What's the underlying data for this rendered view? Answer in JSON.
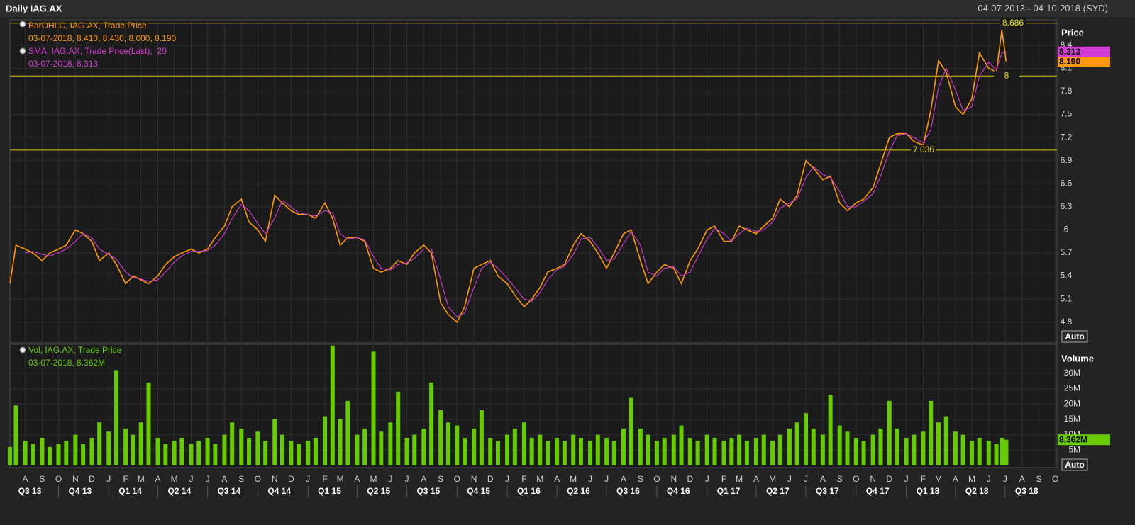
{
  "chart_data": [
    {
      "type": "line",
      "title": "Daily IAG.AX",
      "timezone": "(SYD)",
      "y_axis_title": "Price",
      "scale_mode": "Auto",
      "xlim": [
        "04-07-2013",
        "04-10-2018"
      ],
      "xticks": [
        {
          "value": "01-08-2013",
          "label": "A"
        },
        {
          "value": "01-09-2013",
          "label": "S"
        },
        {
          "value": "01-10-2013",
          "label": "O"
        },
        {
          "value": "01-11-2013",
          "label": "N"
        },
        {
          "value": "01-12-2013",
          "label": "D"
        },
        {
          "value": "01-01-2014",
          "label": "J"
        },
        {
          "value": "01-02-2014",
          "label": "F"
        },
        {
          "value": "01-03-2014",
          "label": "M"
        },
        {
          "value": "01-04-2014",
          "label": "A"
        },
        {
          "value": "01-05-2014",
          "label": "M"
        },
        {
          "value": "01-06-2014",
          "label": "J"
        },
        {
          "value": "01-07-2014",
          "label": "J"
        },
        {
          "value": "01-08-2014",
          "label": "A"
        },
        {
          "value": "01-09-2014",
          "label": "S"
        },
        {
          "value": "01-10-2014",
          "label": "O"
        },
        {
          "value": "01-11-2014",
          "label": "N"
        },
        {
          "value": "01-12-2014",
          "label": "D"
        },
        {
          "value": "01-01-2015",
          "label": "J"
        },
        {
          "value": "01-02-2015",
          "label": "F"
        },
        {
          "value": "01-03-2015",
          "label": "M"
        },
        {
          "value": "01-04-2015",
          "label": "A"
        },
        {
          "value": "01-05-2015",
          "label": "M"
        },
        {
          "value": "01-06-2015",
          "label": "J"
        },
        {
          "value": "01-07-2015",
          "label": "J"
        },
        {
          "value": "01-08-2015",
          "label": "A"
        },
        {
          "value": "01-09-2015",
          "label": "S"
        },
        {
          "value": "01-10-2015",
          "label": "O"
        },
        {
          "value": "01-11-2015",
          "label": "N"
        },
        {
          "value": "01-12-2015",
          "label": "D"
        },
        {
          "value": "01-01-2016",
          "label": "J"
        },
        {
          "value": "01-02-2016",
          "label": "F"
        },
        {
          "value": "01-03-2016",
          "label": "M"
        },
        {
          "value": "01-04-2016",
          "label": "A"
        },
        {
          "value": "01-05-2016",
          "label": "M"
        },
        {
          "value": "01-06-2016",
          "label": "J"
        },
        {
          "value": "01-07-2016",
          "label": "J"
        },
        {
          "value": "01-08-2016",
          "label": "A"
        },
        {
          "value": "01-09-2016",
          "label": "S"
        },
        {
          "value": "01-10-2016",
          "label": "O"
        },
        {
          "value": "01-11-2016",
          "label": "N"
        },
        {
          "value": "01-12-2016",
          "label": "D"
        },
        {
          "value": "01-01-2017",
          "label": "J"
        },
        {
          "value": "01-02-2017",
          "label": "F"
        },
        {
          "value": "01-03-2017",
          "label": "M"
        },
        {
          "value": "01-04-2017",
          "label": "A"
        },
        {
          "value": "01-05-2017",
          "label": "M"
        },
        {
          "value": "01-06-2017",
          "label": "J"
        },
        {
          "value": "01-07-2017",
          "label": "J"
        },
        {
          "value": "01-08-2017",
          "label": "A"
        },
        {
          "value": "01-09-2017",
          "label": "S"
        },
        {
          "value": "01-10-2017",
          "label": "O"
        },
        {
          "value": "01-11-2017",
          "label": "N"
        },
        {
          "value": "01-12-2017",
          "label": "D"
        },
        {
          "value": "01-01-2018",
          "label": "J"
        },
        {
          "value": "01-02-2018",
          "label": "F"
        },
        {
          "value": "01-03-2018",
          "label": "M"
        },
        {
          "value": "01-04-2018",
          "label": "A"
        },
        {
          "value": "01-05-2018",
          "label": "M"
        },
        {
          "value": "01-06-2018",
          "label": "J"
        },
        {
          "value": "01-07-2018",
          "label": "J"
        },
        {
          "value": "01-08-2018",
          "label": "A"
        },
        {
          "value": "01-09-2018",
          "label": "S"
        },
        {
          "value": "01-10-2018",
          "label": "O"
        }
      ],
      "quarters": [
        {
          "value": "01-07-2013",
          "label": "Q3 13"
        },
        {
          "value": "01-10-2013",
          "label": "Q4 13"
        },
        {
          "value": "01-01-2014",
          "label": "Q1 14"
        },
        {
          "value": "01-04-2014",
          "label": "Q2 14"
        },
        {
          "value": "01-07-2014",
          "label": "Q3 14"
        },
        {
          "value": "01-10-2014",
          "label": "Q4 14"
        },
        {
          "value": "01-01-2015",
          "label": "Q1 15"
        },
        {
          "value": "01-04-2015",
          "label": "Q2 15"
        },
        {
          "value": "01-07-2015",
          "label": "Q3 15"
        },
        {
          "value": "01-10-2015",
          "label": "Q4 15"
        },
        {
          "value": "01-01-2016",
          "label": "Q1 16"
        },
        {
          "value": "01-04-2016",
          "label": "Q2 16"
        },
        {
          "value": "01-07-2016",
          "label": "Q3 16"
        },
        {
          "value": "01-10-2016",
          "label": "Q4 16"
        },
        {
          "value": "01-01-2017",
          "label": "Q1 17"
        },
        {
          "value": "01-04-2017",
          "label": "Q2 17"
        },
        {
          "value": "01-07-2017",
          "label": "Q3 17"
        },
        {
          "value": "01-10-2017",
          "label": "Q4 17"
        },
        {
          "value": "01-01-2018",
          "label": "Q1 18"
        },
        {
          "value": "01-04-2018",
          "label": "Q2 18"
        },
        {
          "value": "01-07-2018",
          "label": "Q3 18"
        }
      ],
      "ylim": [
        4.53,
        8.73
      ],
      "yticks": [
        4.8,
        5.1,
        5.4,
        5.7,
        6,
        6.3,
        6.6,
        6.9,
        7.2,
        7.5,
        7.8,
        8.1,
        8.4
      ],
      "grid": true,
      "levels": [
        8.686,
        8,
        7.036
      ],
      "x": [
        "04-07-2013",
        "15-07-2013",
        "01-08-2013",
        "15-08-2013",
        "01-09-2013",
        "15-09-2013",
        "01-10-2013",
        "15-10-2013",
        "01-11-2013",
        "15-11-2013",
        "01-12-2013",
        "15-12-2013",
        "01-01-2014",
        "15-01-2014",
        "01-02-2014",
        "15-02-2014",
        "01-03-2014",
        "15-03-2014",
        "01-04-2014",
        "15-04-2014",
        "01-05-2014",
        "15-05-2014",
        "01-06-2014",
        "15-06-2014",
        "01-07-2014",
        "15-07-2014",
        "01-08-2014",
        "15-08-2014",
        "01-09-2014",
        "15-09-2014",
        "01-10-2014",
        "15-10-2014",
        "01-11-2014",
        "15-11-2014",
        "01-12-2014",
        "15-12-2014",
        "01-01-2015",
        "15-01-2015",
        "01-02-2015",
        "15-02-2015",
        "01-03-2015",
        "15-03-2015",
        "01-04-2015",
        "15-04-2015",
        "01-05-2015",
        "15-05-2015",
        "01-06-2015",
        "15-06-2015",
        "01-07-2015",
        "15-07-2015",
        "01-08-2015",
        "15-08-2015",
        "01-09-2015",
        "15-09-2015",
        "01-10-2015",
        "15-10-2015",
        "01-11-2015",
        "15-11-2015",
        "01-12-2015",
        "15-12-2015",
        "01-01-2016",
        "15-01-2016",
        "01-02-2016",
        "15-02-2016",
        "01-03-2016",
        "15-03-2016",
        "01-04-2016",
        "15-04-2016",
        "01-05-2016",
        "15-05-2016",
        "01-06-2016",
        "15-06-2016",
        "01-07-2016",
        "15-07-2016",
        "01-08-2016",
        "15-08-2016",
        "01-09-2016",
        "15-09-2016",
        "01-10-2016",
        "15-10-2016",
        "01-11-2016",
        "15-11-2016",
        "01-12-2016",
        "15-12-2016",
        "01-01-2017",
        "15-01-2017",
        "01-02-2017",
        "15-02-2017",
        "01-03-2017",
        "15-03-2017",
        "01-04-2017",
        "15-04-2017",
        "01-05-2017",
        "15-05-2017",
        "01-06-2017",
        "15-06-2017",
        "01-07-2017",
        "15-07-2017",
        "01-08-2017",
        "15-08-2017",
        "01-09-2017",
        "15-09-2017",
        "01-10-2017",
        "15-10-2017",
        "01-11-2017",
        "15-11-2017",
        "01-12-2017",
        "15-12-2017",
        "01-01-2018",
        "15-01-2018",
        "01-02-2018",
        "15-02-2018",
        "01-03-2018",
        "15-03-2018",
        "01-04-2018",
        "15-04-2018",
        "01-05-2018",
        "15-05-2018",
        "01-06-2018",
        "15-06-2018",
        "25-06-2018",
        "03-07-2018"
      ],
      "series": [
        {
          "name": "BarOHLC, IAG.AX, Trade Price",
          "readout": "03-07-2018, 8.410, 8.430, 8.000, 8.190",
          "last_label": "8.190",
          "color": "#ff9900",
          "values": [
            5.3,
            5.8,
            5.75,
            5.7,
            5.6,
            5.7,
            5.75,
            5.8,
            6.0,
            5.95,
            5.85,
            5.6,
            5.7,
            5.55,
            5.3,
            5.4,
            5.35,
            5.3,
            5.4,
            5.55,
            5.65,
            5.7,
            5.75,
            5.7,
            5.75,
            5.9,
            6.05,
            6.3,
            6.4,
            6.1,
            6.0,
            5.85,
            6.45,
            6.35,
            6.25,
            6.2,
            6.2,
            6.15,
            6.35,
            6.15,
            5.8,
            5.9,
            5.9,
            5.85,
            5.5,
            5.45,
            5.5,
            5.6,
            5.55,
            5.7,
            5.8,
            5.7,
            5.05,
            4.9,
            4.8,
            5.0,
            5.5,
            5.55,
            5.6,
            5.4,
            5.3,
            5.15,
            5.0,
            5.1,
            5.25,
            5.45,
            5.5,
            5.55,
            5.8,
            5.95,
            5.85,
            5.7,
            5.5,
            5.7,
            5.95,
            6.0,
            5.6,
            5.3,
            5.45,
            5.55,
            5.5,
            5.3,
            5.6,
            5.75,
            6.0,
            6.05,
            5.85,
            5.85,
            6.05,
            6.0,
            5.95,
            6.05,
            6.15,
            6.4,
            6.3,
            6.45,
            6.9,
            6.8,
            6.65,
            6.7,
            6.35,
            6.25,
            6.35,
            6.4,
            6.55,
            6.85,
            7.2,
            7.25,
            7.25,
            7.15,
            7.1,
            7.55,
            8.2,
            8.05,
            7.6,
            7.5,
            7.7,
            8.3,
            8.1,
            8.05,
            8.6,
            8.19
          ]
        },
        {
          "name": "SMA, IAG.AX, Trade Price(Last),  20",
          "readout": "03-07-2018, 8.313",
          "last_label": "8.313",
          "color": "#d23cd2",
          "values": [
            null,
            null,
            5.7,
            5.72,
            5.68,
            5.66,
            5.7,
            5.75,
            5.85,
            5.95,
            5.9,
            5.75,
            5.68,
            5.62,
            5.45,
            5.38,
            5.36,
            5.33,
            5.35,
            5.45,
            5.58,
            5.66,
            5.72,
            5.72,
            5.73,
            5.8,
            5.95,
            6.15,
            6.33,
            6.25,
            6.08,
            5.95,
            6.15,
            6.38,
            6.3,
            6.22,
            6.2,
            6.18,
            6.25,
            6.22,
            5.95,
            5.88,
            5.9,
            5.87,
            5.65,
            5.5,
            5.48,
            5.55,
            5.57,
            5.63,
            5.75,
            5.75,
            5.35,
            5.0,
            4.87,
            4.92,
            5.25,
            5.5,
            5.58,
            5.5,
            5.37,
            5.25,
            5.1,
            5.07,
            5.18,
            5.35,
            5.48,
            5.53,
            5.68,
            5.88,
            5.9,
            5.78,
            5.6,
            5.62,
            5.82,
            5.98,
            5.8,
            5.45,
            5.4,
            5.5,
            5.52,
            5.4,
            5.45,
            5.65,
            5.88,
            6.02,
            5.95,
            5.85,
            5.95,
            6.02,
            5.98,
            6.0,
            6.1,
            6.28,
            6.35,
            6.4,
            6.68,
            6.82,
            6.72,
            6.68,
            6.5,
            6.3,
            6.3,
            6.37,
            6.47,
            6.7,
            7.02,
            7.22,
            7.25,
            7.2,
            7.13,
            7.3,
            7.85,
            8.1,
            7.82,
            7.55,
            7.6,
            8.0,
            8.18,
            8.08,
            8.3,
            8.313
          ]
        }
      ]
    },
    {
      "type": "bar",
      "y_axis_title": "Volume",
      "scale_mode": "Auto",
      "ylim": [
        0,
        39.4
      ],
      "yticks": [
        {
          "value": 5,
          "label": "5M"
        },
        {
          "value": 10,
          "label": "10M"
        },
        {
          "value": 15,
          "label": "15M"
        },
        {
          "value": 20,
          "label": "20M"
        },
        {
          "value": 25,
          "label": "25M"
        },
        {
          "value": 30,
          "label": "30M"
        }
      ],
      "series": [
        {
          "name": "Vol, IAG.AX, Trade Price",
          "readout": "03-07-2018, 8.362M",
          "last_label": "8.362M",
          "color": "#66cc00",
          "values": [
            6,
            19.5,
            8,
            7,
            9,
            6,
            7,
            8,
            10,
            7,
            9,
            14,
            11,
            31,
            12,
            10,
            14,
            27,
            9,
            7,
            8,
            9,
            7,
            8,
            9,
            7,
            10,
            14,
            12,
            9,
            11,
            8,
            15,
            10,
            8,
            7,
            8,
            9,
            16,
            39,
            15,
            21,
            10,
            12,
            37,
            11,
            14,
            24,
            9,
            10,
            12,
            27,
            18,
            14,
            13,
            9,
            12,
            18,
            9,
            8,
            10,
            12,
            14,
            9,
            10,
            8,
            9,
            8,
            10,
            9,
            8,
            10,
            9,
            8,
            12,
            22,
            12,
            10,
            8,
            9,
            10,
            13,
            9,
            8,
            10,
            9,
            8,
            9,
            10,
            8,
            9,
            10,
            8,
            10,
            12,
            14,
            17,
            12,
            10,
            23,
            13,
            11,
            9,
            8,
            10,
            12,
            21,
            12,
            9,
            10,
            11,
            21,
            14,
            16,
            11,
            10,
            8,
            9,
            8,
            7,
            9,
            8.362
          ]
        }
      ]
    }
  ]
}
